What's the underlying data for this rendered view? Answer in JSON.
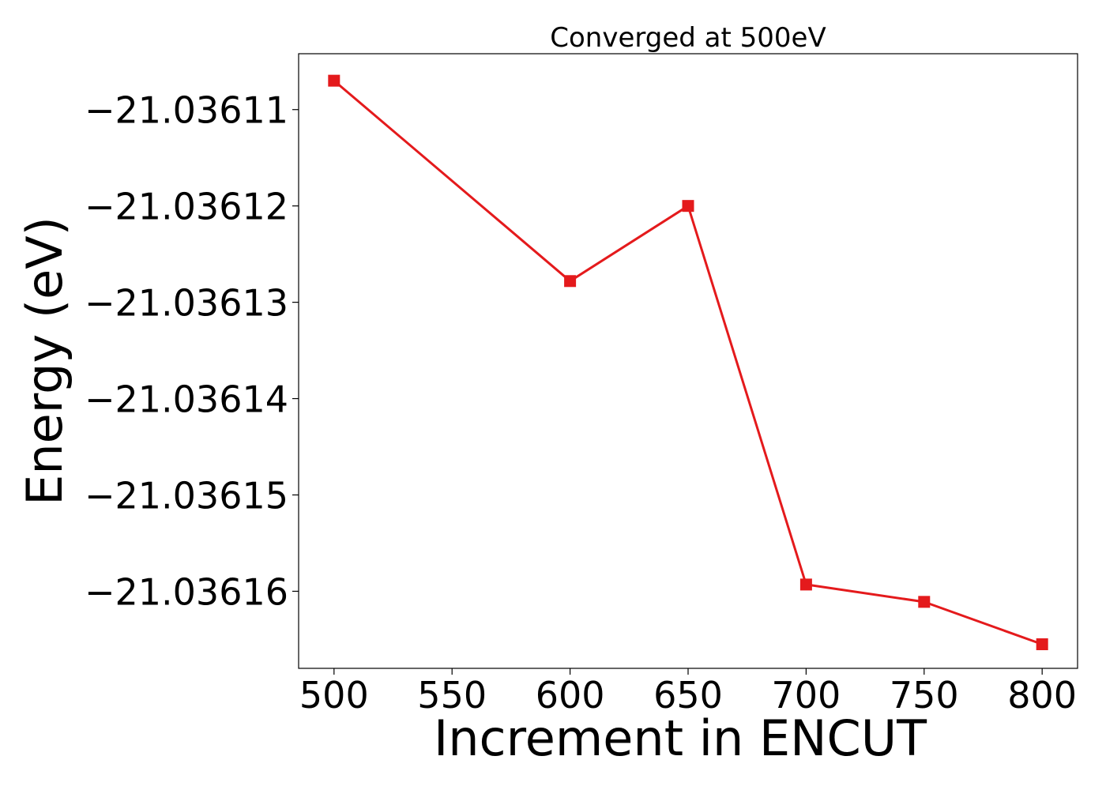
{
  "chart_data": {
    "type": "line",
    "title": "Converged at 500eV",
    "xlabel": "Increment in ENCUT",
    "ylabel": "Energy (eV)",
    "x": [
      500,
      600,
      650,
      700,
      750,
      800
    ],
    "series": [
      {
        "values": [
          -21.036107,
          -21.0361278,
          -21.03612,
          -21.0361593,
          -21.0361611,
          -21.0361655
        ],
        "color": "#e41a1c",
        "marker": "square"
      }
    ],
    "xticks": [
      500,
      550,
      600,
      650,
      700,
      750,
      800
    ],
    "xtick_labels": [
      "500",
      "550",
      "600",
      "650",
      "700",
      "750",
      "800"
    ],
    "yticks": [
      -21.03611,
      -21.03612,
      -21.03613,
      -21.03614,
      -21.03615,
      -21.03616
    ],
    "ytick_labels": [
      "−21.03611",
      "−21.03612",
      "−21.03613",
      "−21.03614",
      "−21.03615",
      "−21.03616"
    ],
    "xlim": [
      485,
      815
    ],
    "ylim": [
      -21.036168,
      -21.0361042
    ],
    "grid": false,
    "legend": "none"
  }
}
